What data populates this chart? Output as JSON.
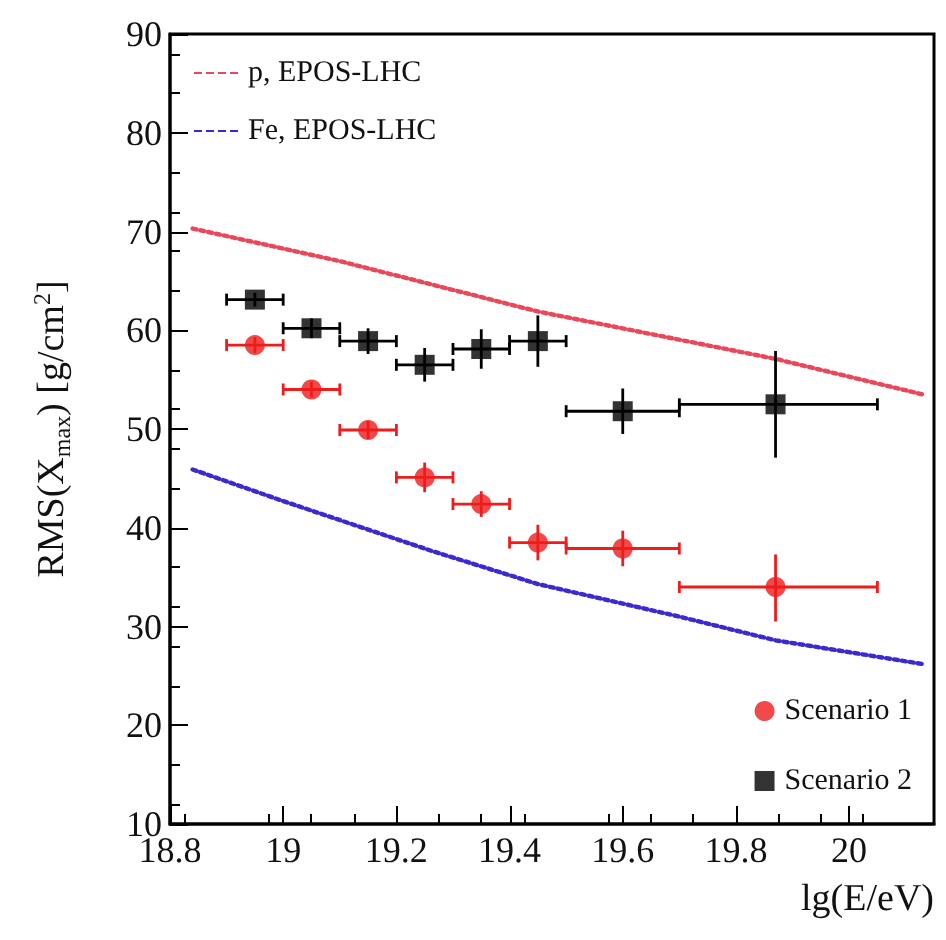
{
  "chart_data": {
    "type": "scatter",
    "xlabel": "lg(E/eV)",
    "ylabel": "RMS(X$_{max}$) [g/cm$^{2}$]",
    "xlim": [
      18.8,
      20.15
    ],
    "xticks": [
      18.8,
      19,
      19.2,
      19.4,
      19.6,
      19.8,
      20
    ],
    "ylim": [
      10,
      90
    ],
    "yticks": [
      10,
      20,
      30,
      40,
      50,
      60,
      70,
      80,
      90
    ],
    "grid": false,
    "legend": "top left",
    "series": [
      {
        "name": "p, EPOS-LHC",
        "type": "line",
        "color": "#e8485a",
        "line_style": "dotted",
        "marker": "none",
        "x": [
          18.84,
          19.1,
          19.45,
          19.87,
          20.13
        ],
        "values": [
          70.3,
          67,
          61.9,
          57.1,
          53.5
        ]
      },
      {
        "name": "Fe, EPOS-LHC",
        "type": "line",
        "color": "#3a2ad0",
        "line_style": "dotted",
        "marker": "none",
        "x": [
          18.84,
          19.0,
          19.26,
          19.45,
          19.7,
          19.87,
          20.13
        ],
        "values": [
          45.9,
          42.7,
          37.7,
          34.3,
          31.0,
          28.6,
          26.2
        ]
      },
      {
        "name": "Scenario 1",
        "color": "#ee1c1c",
        "marker": "circle",
        "x": [
          18.95,
          19.05,
          19.15,
          19.25,
          19.35,
          19.45,
          19.6,
          19.87
        ],
        "values": [
          58.5,
          54.0,
          49.9,
          45.1,
          42.4,
          38.5,
          37.9,
          34.0
        ],
        "errors": [
          0.8,
          0.8,
          0.9,
          1.5,
          1.3,
          1.8,
          1.8,
          [
            30.5,
            37.3
          ]
        ],
        "xerrors": [
          [
            18.9,
            19.0
          ],
          [
            19.0,
            19.1
          ],
          [
            19.1,
            19.2
          ],
          [
            19.2,
            19.3
          ],
          [
            19.3,
            19.4
          ],
          [
            19.4,
            19.5
          ],
          [
            19.5,
            19.7
          ],
          [
            19.7,
            20.05
          ]
        ]
      },
      {
        "name": "Scenario 2",
        "color": "#000000",
        "marker": "square",
        "x": [
          18.95,
          19.05,
          19.15,
          19.25,
          19.35,
          19.45,
          19.6,
          19.87
        ],
        "values": [
          63.1,
          60.2,
          58.9,
          56.5,
          58.1,
          58.9,
          51.8,
          52.5
        ],
        "errors": [
          0.7,
          1.0,
          1.3,
          1.7,
          2.0,
          2.6,
          2.3,
          [
            47.1,
            57.9
          ]
        ],
        "xerrors": [
          [
            18.9,
            19.0
          ],
          [
            19.0,
            19.1
          ],
          [
            19.1,
            19.2
          ],
          [
            19.2,
            19.3
          ],
          [
            19.3,
            19.4
          ],
          [
            19.4,
            19.5
          ],
          [
            19.5,
            19.7
          ],
          [
            19.7,
            20.05
          ]
        ]
      }
    ]
  }
}
